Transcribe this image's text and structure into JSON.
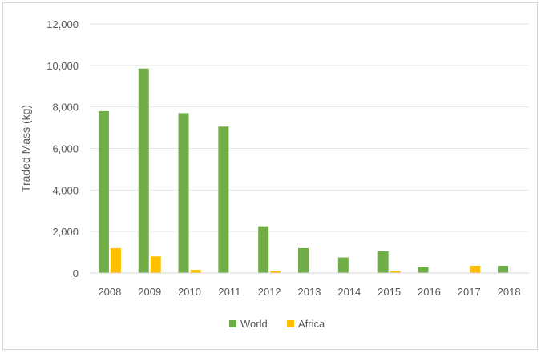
{
  "chart_data": {
    "type": "bar",
    "title": "",
    "xlabel": "",
    "ylabel": "Traded Mass (kg)",
    "ylim": [
      0,
      12000
    ],
    "yticks": [
      0,
      2000,
      4000,
      6000,
      8000,
      10000,
      12000
    ],
    "ytick_labels": [
      "0",
      "2,000",
      "4,000",
      "6,000",
      "8,000",
      "10,000",
      "12,000"
    ],
    "categories": [
      "2008",
      "2009",
      "2010",
      "2011",
      "2012",
      "2013",
      "2014",
      "2015",
      "2016",
      "2017",
      "2018"
    ],
    "series": [
      {
        "name": "World",
        "color": "#70ad47",
        "values": [
          7800,
          9850,
          7700,
          7050,
          2250,
          1200,
          750,
          1050,
          300,
          0,
          350
        ]
      },
      {
        "name": "Africa",
        "color": "#ffc000",
        "values": [
          1200,
          800,
          150,
          0,
          100,
          0,
          0,
          100,
          0,
          350,
          0
        ]
      }
    ],
    "grid": true,
    "legend_position": "bottom"
  }
}
